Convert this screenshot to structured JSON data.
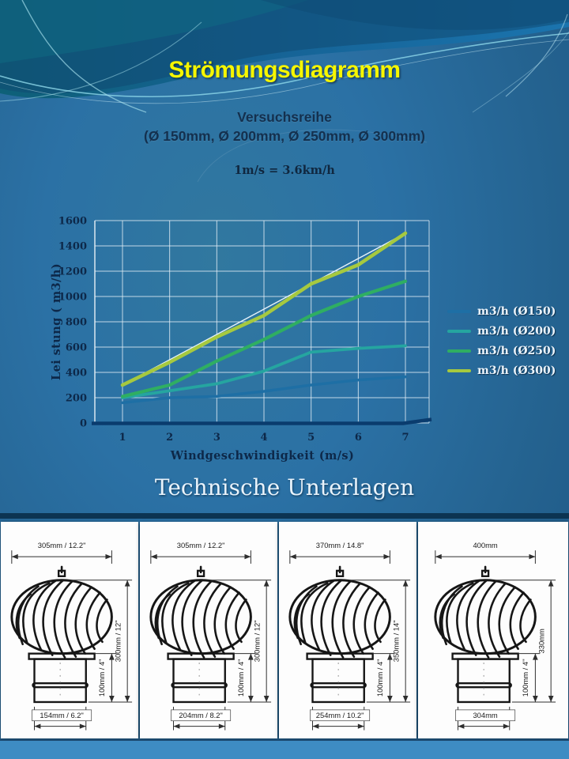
{
  "slide": {
    "title": "Strömungsdiagramm",
    "subtitle_line1": "Versuchsreihe",
    "subtitle_line2": "(Ø 150mm, Ø 200mm, Ø 250mm, Ø 300mm)",
    "conversion_note": "1m/s = 3.6km/h",
    "section_heading": "Technische Unterlagen"
  },
  "chart_data": {
    "type": "line",
    "xlabel": "Windgeschwindigkeit  (m/s)",
    "ylabel": "Lei stung ( m3/h)",
    "x": [
      1,
      2,
      3,
      4,
      5,
      6,
      7
    ],
    "xticks": [
      1,
      2,
      3,
      4,
      5,
      6,
      7
    ],
    "yticks": [
      0,
      200,
      400,
      600,
      800,
      1000,
      1200,
      1400,
      1600
    ],
    "ylim": [
      0,
      1600
    ],
    "grid": true,
    "legend_position": "right",
    "axis_baseline_color": "#0a3c6e",
    "series": [
      {
        "name": "m3/h (Ø150)",
        "color": "#1e6fa5",
        "width": 3.5,
        "values": [
          160,
          200,
          210,
          250,
          300,
          340,
          365
        ]
      },
      {
        "name": "m3/h (Ø200)",
        "color": "#25a5a0",
        "width": 3.8,
        "values": [
          200,
          255,
          310,
          410,
          560,
          590,
          610
        ]
      },
      {
        "name": "m3/h (Ø250)",
        "color": "#2fae62",
        "width": 4.2,
        "values": [
          210,
          300,
          490,
          660,
          850,
          1000,
          1120
        ]
      },
      {
        "name": "m3/h (Ø300)",
        "color": "#a6c93f",
        "width": 4.5,
        "values": [
          300,
          480,
          680,
          850,
          1100,
          1250,
          1500
        ]
      }
    ],
    "trendline": {
      "color": "#e6f2fa",
      "from": [
        1,
        300
      ],
      "to": [
        7,
        1500
      ]
    }
  },
  "technical_cards": [
    {
      "top_dim": "305mm / 12.2\"",
      "height_dim": "300mm / 12\"",
      "duct_height_dim": "100mm / 4\"",
      "bottom_dim": "154mm / 6.2\""
    },
    {
      "top_dim": "305mm / 12.2\"",
      "height_dim": "300mm / 12\"",
      "duct_height_dim": "100mm / 4\"",
      "bottom_dim": "204mm / 8.2\""
    },
    {
      "top_dim": "370mm / 14.8\"",
      "height_dim": "350mm / 14\"",
      "duct_height_dim": "100mm / 4\"",
      "bottom_dim": "254mm / 10.2\""
    },
    {
      "top_dim": "400mm",
      "height_dim": "330mm",
      "duct_height_dim": "100mm / 4''",
      "bottom_dim": "304mm"
    }
  ]
}
